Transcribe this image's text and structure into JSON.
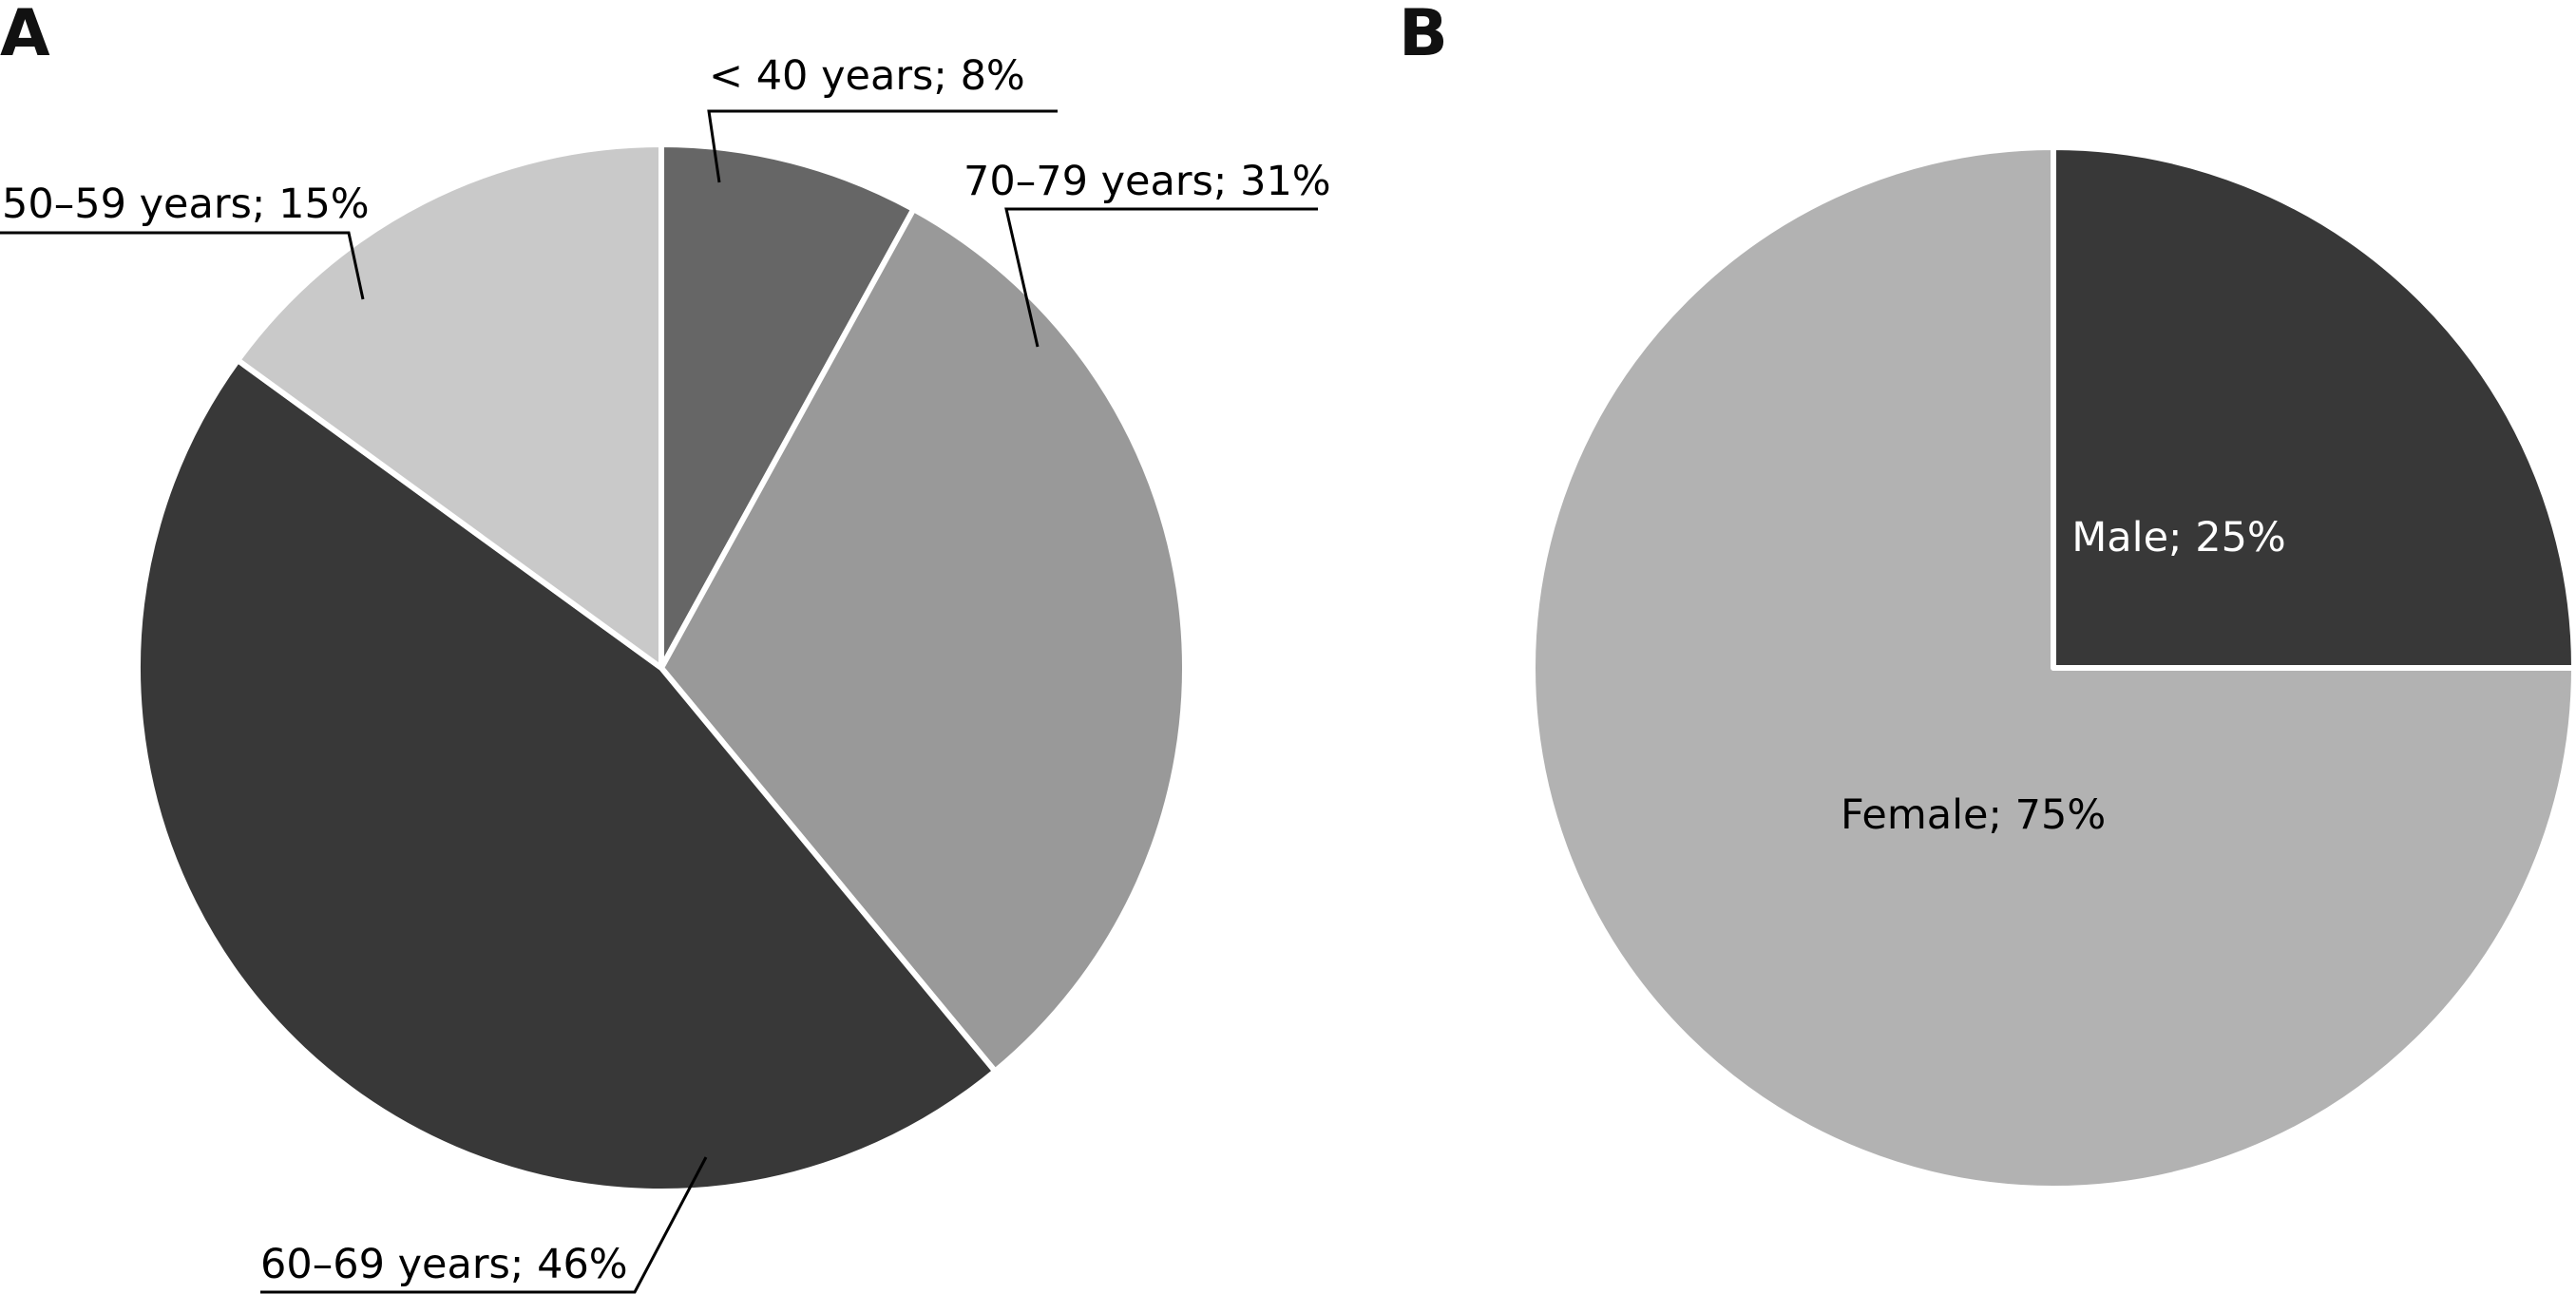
{
  "panels": [
    {
      "letter": "A",
      "chart_data": {
        "type": "pie",
        "title": "",
        "slices": [
          {
            "label": "< 40 years; 8%",
            "category": "< 40 years",
            "value": 8,
            "color": "#666666",
            "text_color": "#000000"
          },
          {
            "label": "70–79 years; 31%",
            "category": "70–79 years",
            "value": 31,
            "color": "#999999",
            "text_color": "#000000"
          },
          {
            "label": "60–69 years; 46%",
            "category": "60–69 years",
            "value": 46,
            "color": "#383838",
            "text_color": "#000000"
          },
          {
            "label": "50–59 years; 15%",
            "category": "50–59 years",
            "value": 15,
            "color": "#c9c9c9",
            "text_color": "#000000"
          }
        ],
        "start_angle_deg": 0,
        "direction": "clockwise",
        "legend": "none"
      }
    },
    {
      "letter": "B",
      "chart_data": {
        "type": "pie",
        "title": "",
        "slices": [
          {
            "label": "Male; 25%",
            "category": "Male",
            "value": 25,
            "color": "#383838",
            "text_color": "#ffffff"
          },
          {
            "label": "Female; 75%",
            "category": "Female",
            "value": 75,
            "color": "#b2b2b2",
            "text_color": "#000000"
          }
        ],
        "start_angle_deg": 0,
        "direction": "clockwise",
        "legend": "none"
      }
    }
  ]
}
